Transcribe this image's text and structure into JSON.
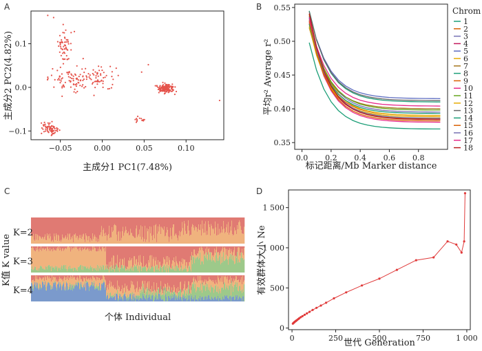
{
  "panels": {
    "A": "A",
    "B": "B",
    "C": "C",
    "D": "D"
  },
  "chart_data": [
    {
      "type": "scatter",
      "panel": "A",
      "xlabel": "主成分1 PC1(7.48%)",
      "ylabel": "主成分2 PC2(4.82%)",
      "xlim": [
        -0.085,
        0.145
      ],
      "ylim": [
        -0.12,
        0.175
      ],
      "xticks": [
        -0.05,
        0.0,
        0.05,
        0.1
      ],
      "xtick_labels": [
        "−0.05",
        "0.00",
        "0.05",
        "0.10"
      ],
      "yticks": [
        -0.1,
        0.0,
        0.1
      ],
      "ytick_labels": [
        "−0.1",
        "0.0",
        "0.1"
      ],
      "point_color": "#e5534b",
      "clusters": [
        {
          "cx": -0.062,
          "cy": -0.095,
          "sx": 0.009,
          "sy": 0.014,
          "n": 70
        },
        {
          "cx": -0.045,
          "cy": 0.1,
          "sx": 0.01,
          "sy": 0.035,
          "n": 55
        },
        {
          "cx": -0.035,
          "cy": 0.02,
          "sx": 0.025,
          "sy": 0.03,
          "n": 90
        },
        {
          "cx": 0.0,
          "cy": 0.02,
          "sx": 0.02,
          "sy": 0.025,
          "n": 50
        },
        {
          "cx": 0.075,
          "cy": -0.002,
          "sx": 0.009,
          "sy": 0.01,
          "n": 150
        },
        {
          "cx": 0.045,
          "cy": -0.075,
          "sx": 0.008,
          "sy": 0.009,
          "n": 14
        }
      ],
      "extra_points": [
        [
          0.14,
          -0.03
        ],
        [
          0.055,
          0.052
        ],
        [
          0.047,
          0.035
        ],
        [
          -0.065,
          0.165
        ],
        [
          -0.058,
          0.16
        ]
      ]
    },
    {
      "type": "line",
      "panel": "B",
      "xlabel": "标记距离/Mb Marker distance",
      "ylabel": "平均r² Average r²",
      "xlim": [
        -0.05,
        1.0
      ],
      "ylim": [
        0.34,
        0.555
      ],
      "xticks": [
        0.0,
        0.2,
        0.4,
        0.6,
        0.8
      ],
      "xtick_labels": [
        "0.0",
        "0.2",
        "0.4",
        "0.6",
        "0.8"
      ],
      "yticks": [
        0.35,
        0.4,
        0.45,
        0.5,
        0.55
      ],
      "ytick_labels": [
        "0.35",
        "0.40",
        "0.45",
        "0.50",
        "0.55"
      ],
      "x": [
        0.05,
        0.1,
        0.15,
        0.2,
        0.25,
        0.3,
        0.35,
        0.4,
        0.45,
        0.5,
        0.55,
        0.6,
        0.65,
        0.7,
        0.75,
        0.8,
        0.85,
        0.9,
        0.95
      ],
      "legend_title": "Chrom",
      "series": [
        {
          "name": "1",
          "color": "#1b9e77",
          "start": 0.498,
          "end": 0.37,
          "x0": 0.05
        },
        {
          "name": "2",
          "color": "#d95f02",
          "start": 0.525,
          "end": 0.39,
          "x0": 0.05
        },
        {
          "name": "3",
          "color": "#7570b3",
          "start": 0.535,
          "end": 0.395,
          "x0": 0.05
        },
        {
          "name": "4",
          "color": "#c2185b",
          "start": 0.53,
          "end": 0.385,
          "x0": 0.05
        },
        {
          "name": "5",
          "color": "#5c6bc0",
          "start": 0.503,
          "end": 0.415,
          "x0": 0.1
        },
        {
          "name": "6",
          "color": "#e6ab02",
          "start": 0.54,
          "end": 0.39,
          "x0": 0.05
        },
        {
          "name": "7",
          "color": "#a6761d",
          "start": 0.52,
          "end": 0.4,
          "x0": 0.05
        },
        {
          "name": "8",
          "color": "#1b9e77",
          "start": 0.545,
          "end": 0.41,
          "x0": 0.05
        },
        {
          "name": "9",
          "color": "#d95f02",
          "start": 0.538,
          "end": 0.385,
          "x0": 0.05
        },
        {
          "name": "10",
          "color": "#e7298a",
          "start": 0.528,
          "end": 0.38,
          "x0": 0.05
        },
        {
          "name": "11",
          "color": "#66a61e",
          "start": 0.532,
          "end": 0.398,
          "x0": 0.05
        },
        {
          "name": "12",
          "color": "#e6ab02",
          "start": 0.522,
          "end": 0.388,
          "x0": 0.05
        },
        {
          "name": "13",
          "color": "#666666",
          "start": 0.544,
          "end": 0.412,
          "x0": 0.05
        },
        {
          "name": "14",
          "color": "#1b9e77",
          "start": 0.526,
          "end": 0.393,
          "x0": 0.05
        },
        {
          "name": "15",
          "color": "#d95f02",
          "start": 0.53,
          "end": 0.382,
          "x0": 0.05
        },
        {
          "name": "16",
          "color": "#7570b3",
          "start": 0.536,
          "end": 0.386,
          "x0": 0.05
        },
        {
          "name": "17",
          "color": "#e7298a",
          "start": 0.534,
          "end": 0.404,
          "x0": 0.05
        },
        {
          "name": "18",
          "color": "#b71c1c",
          "start": 0.541,
          "end": 0.384,
          "x0": 0.05
        }
      ]
    },
    {
      "type": "bar",
      "panel": "C",
      "subtype": "stacked admixture",
      "xlabel": "个体 Individual",
      "ylabel": "K值 K value",
      "n_individuals": 310,
      "rows": [
        {
          "label": "K=2",
          "colors": [
            "#e07a73",
            "#f0b37e"
          ]
        },
        {
          "label": "K=3",
          "colors": [
            "#e07a73",
            "#f0b37e",
            "#9dc98a"
          ]
        },
        {
          "label": "K=4",
          "colors": [
            "#7b9acc",
            "#e07a73",
            "#f0b37e",
            "#9dc98a"
          ]
        }
      ]
    },
    {
      "type": "line",
      "panel": "D",
      "xlabel": "世代 Generation",
      "ylabel": "有效群体大小 Ne",
      "xlim": [
        -20,
        1020
      ],
      "ylim": [
        -20,
        1720
      ],
      "xticks": [
        0,
        250,
        500,
        750,
        1000
      ],
      "xtick_labels": [
        "0",
        "250",
        "500",
        "750",
        "1 000"
      ],
      "yticks": [
        0,
        500,
        1000,
        1500
      ],
      "ytick_labels": [
        "0",
        "500",
        "1 000",
        "1 500"
      ],
      "color": "#e03a3a",
      "x": [
        5,
        8,
        11,
        14,
        17,
        21,
        25,
        30,
        36,
        42,
        50,
        60,
        72,
        85,
        100,
        118,
        140,
        165,
        195,
        240,
        310,
        400,
        500,
        600,
        710,
        810,
        890,
        940,
        970,
        985,
        990
      ],
      "y": [
        55,
        62,
        68,
        74,
        80,
        86,
        94,
        102,
        112,
        122,
        135,
        148,
        165,
        182,
        202,
        225,
        252,
        280,
        315,
        370,
        445,
        530,
        615,
        725,
        845,
        880,
        1080,
        1040,
        940,
        1080,
        1680
      ]
    }
  ]
}
